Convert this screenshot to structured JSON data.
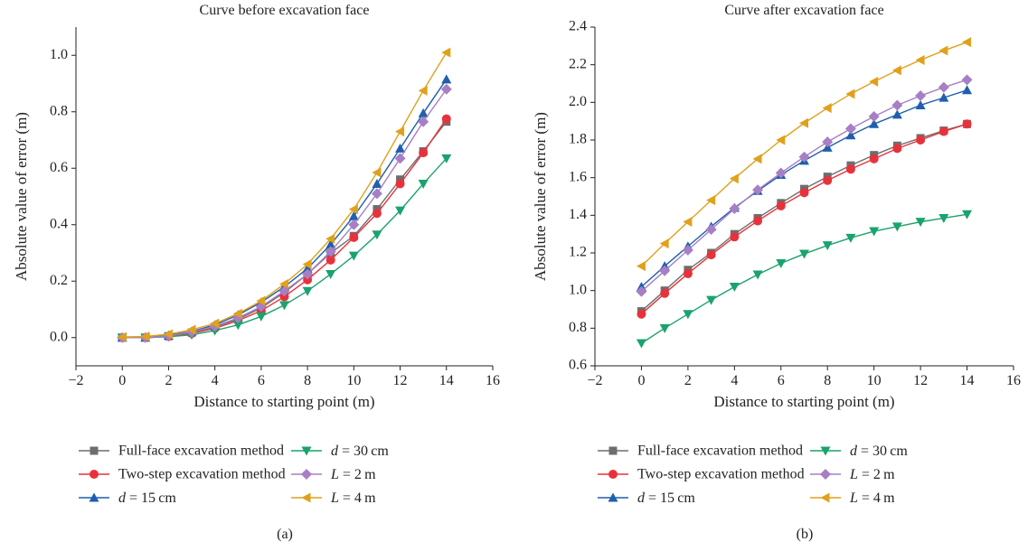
{
  "chart_data": [
    {
      "type": "line",
      "title": "Curve before excavation face",
      "xlabel": "Distance to starting point (m)",
      "ylabel": "Absolute value of error (m)",
      "xlim": [
        -2,
        16
      ],
      "ylim": [
        -0.1,
        1.1
      ],
      "xticks": [
        -2,
        0,
        2,
        4,
        6,
        8,
        10,
        12,
        14,
        16
      ],
      "yticks": [
        0.0,
        0.2,
        0.4,
        0.6,
        0.8,
        1.0
      ],
      "xtick_labels": [
        "−2",
        "0",
        "2",
        "4",
        "6",
        "8",
        "10",
        "12",
        "14",
        "16"
      ],
      "ytick_labels": [
        "0.0",
        "0.2",
        "0.4",
        "0.6",
        "0.8",
        "1.0"
      ],
      "panel_label": "(a)",
      "x": [
        0,
        1,
        2,
        3,
        4,
        5,
        6,
        7,
        8,
        9,
        10,
        11,
        12,
        13,
        14
      ],
      "series": [
        {
          "name": "Full-face excavation method",
          "color": "#6e6e6e",
          "marker": "square",
          "values": [
            0.0,
            0.0,
            0.005,
            0.018,
            0.038,
            0.065,
            0.105,
            0.16,
            0.225,
            0.3,
            0.36,
            0.455,
            0.56,
            0.66,
            0.765
          ]
        },
        {
          "name": "Two-step excavation method",
          "color": "#e8323b",
          "marker": "circle",
          "values": [
            0.0,
            0.0,
            0.004,
            0.015,
            0.033,
            0.06,
            0.095,
            0.145,
            0.205,
            0.275,
            0.355,
            0.44,
            0.545,
            0.655,
            0.775
          ]
        },
        {
          "name": "d = 15 cm",
          "color": "#1f5fae",
          "marker": "triangle-up",
          "values": [
            0.0,
            0.0,
            0.008,
            0.022,
            0.045,
            0.08,
            0.125,
            0.18,
            0.245,
            0.33,
            0.43,
            0.545,
            0.67,
            0.795,
            0.915
          ]
        },
        {
          "name": "d = 30 cm",
          "color": "#1aa36d",
          "marker": "triangle-down",
          "values": [
            0.0,
            0.0,
            0.003,
            0.01,
            0.025,
            0.045,
            0.075,
            0.115,
            0.165,
            0.225,
            0.29,
            0.365,
            0.45,
            0.545,
            0.635
          ]
        },
        {
          "name": "L = 2 m",
          "color": "#a77fc4",
          "marker": "diamond",
          "values": [
            0.0,
            0.0,
            0.006,
            0.02,
            0.04,
            0.07,
            0.11,
            0.165,
            0.225,
            0.305,
            0.4,
            0.51,
            0.635,
            0.765,
            0.88
          ]
        },
        {
          "name": "L = 4 m",
          "color": "#e0a11b",
          "marker": "triangle-left",
          "values": [
            0.002,
            0.004,
            0.012,
            0.028,
            0.05,
            0.085,
            0.13,
            0.19,
            0.26,
            0.35,
            0.455,
            0.585,
            0.73,
            0.875,
            1.01
          ]
        }
      ]
    },
    {
      "type": "line",
      "title": "Curve after excavation face",
      "xlabel": "Distance to starting point (m)",
      "ylabel": "Absolute value of error (m)",
      "xlim": [
        -2,
        16
      ],
      "ylim": [
        0.6,
        2.4
      ],
      "xticks": [
        -2,
        0,
        2,
        4,
        6,
        8,
        10,
        12,
        14,
        16
      ],
      "yticks": [
        0.6,
        0.8,
        1.0,
        1.2,
        1.4,
        1.6,
        1.8,
        2.0,
        2.2,
        2.4
      ],
      "xtick_labels": [
        "−2",
        "0",
        "2",
        "4",
        "6",
        "8",
        "10",
        "12",
        "14",
        "16"
      ],
      "ytick_labels": [
        "0.6",
        "0.8",
        "1.0",
        "1.2",
        "1.4",
        "1.6",
        "1.8",
        "2.0",
        "2.2",
        "2.4"
      ],
      "panel_label": "(b)",
      "x": [
        0,
        1,
        2,
        3,
        4,
        5,
        6,
        7,
        8,
        9,
        10,
        11,
        12,
        13,
        14
      ],
      "series": [
        {
          "name": "Full-face excavation method",
          "color": "#6e6e6e",
          "marker": "square",
          "values": [
            0.89,
            1.0,
            1.11,
            1.2,
            1.3,
            1.385,
            1.465,
            1.54,
            1.605,
            1.665,
            1.72,
            1.77,
            1.81,
            1.85,
            1.885
          ]
        },
        {
          "name": "Two-step excavation method",
          "color": "#e8323b",
          "marker": "circle",
          "values": [
            0.875,
            0.985,
            1.09,
            1.19,
            1.285,
            1.37,
            1.45,
            1.52,
            1.585,
            1.645,
            1.7,
            1.755,
            1.8,
            1.845,
            1.885
          ]
        },
        {
          "name": "d = 15 cm",
          "color": "#1f5fae",
          "marker": "triangle-up",
          "values": [
            1.02,
            1.13,
            1.235,
            1.34,
            1.44,
            1.53,
            1.615,
            1.69,
            1.76,
            1.825,
            1.885,
            1.935,
            1.985,
            2.025,
            2.065
          ]
        },
        {
          "name": "d = 30 cm",
          "color": "#1aa36d",
          "marker": "triangle-down",
          "values": [
            0.72,
            0.8,
            0.875,
            0.95,
            1.02,
            1.085,
            1.145,
            1.195,
            1.24,
            1.28,
            1.315,
            1.34,
            1.365,
            1.385,
            1.405
          ]
        },
        {
          "name": "L = 2 m",
          "color": "#a77fc4",
          "marker": "diamond",
          "values": [
            0.995,
            1.105,
            1.215,
            1.325,
            1.435,
            1.535,
            1.625,
            1.71,
            1.79,
            1.86,
            1.925,
            1.985,
            2.035,
            2.08,
            2.12
          ]
        },
        {
          "name": "L = 4 m",
          "color": "#e0a11b",
          "marker": "triangle-left",
          "values": [
            1.13,
            1.25,
            1.365,
            1.48,
            1.595,
            1.7,
            1.8,
            1.89,
            1.97,
            2.045,
            2.11,
            2.17,
            2.225,
            2.275,
            2.32
          ]
        }
      ]
    }
  ]
}
